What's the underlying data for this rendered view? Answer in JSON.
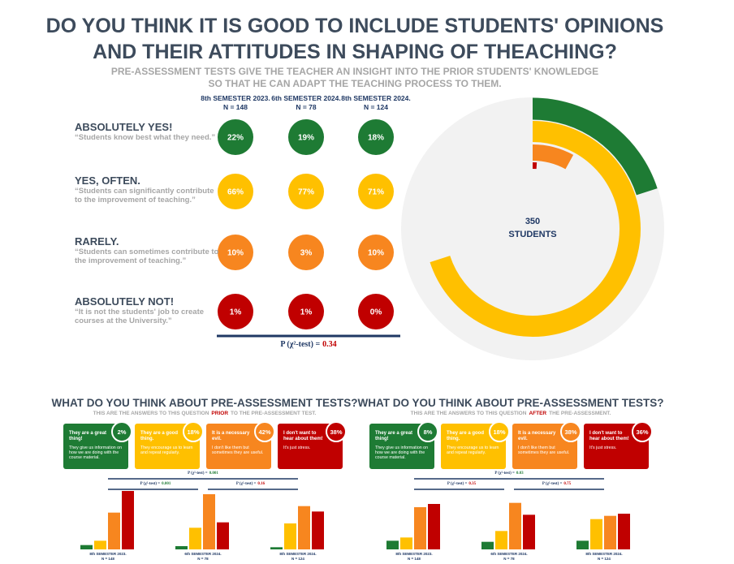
{
  "header": {
    "title_lines": [
      "DO YOU THINK IT IS GOOD TO INCLUDE STUDENTS' OPINIONS",
      "AND THEIR ATTITUDES IN SHAPING OF THEACHING?"
    ],
    "subtitle_lines": [
      "PRE-ASSESSMENT TESTS GIVE THE TEACHER AN INSIGHT INTO THE PRIOR STUDENTS' KNOWLEDGE",
      "SO THAT HE CAN ADAPT THE TEACHING PROCESS TO THEM."
    ]
  },
  "groups": [
    {
      "label": "8th SEMESTER 2023.",
      "n": "N = 148"
    },
    {
      "label": "6th SEMESTER 2024.",
      "n": "N = 78"
    },
    {
      "label": "8th SEMESTER 2024.",
      "n": "N = 124"
    }
  ],
  "answers": [
    {
      "label": "ABSOLUTELY YES!",
      "quote": "“Students know best what they need.”",
      "color": "#1e7b34",
      "values": [
        "22%",
        "19%",
        "18%"
      ]
    },
    {
      "label": "YES, OFTEN.",
      "quote": "“Students can significantly contribute to the improvement of teaching.”",
      "color": "#ffc000",
      "values": [
        "66%",
        "77%",
        "71%"
      ]
    },
    {
      "label": "RARELY.",
      "quote": "“Students can sometimes contribute to the improvement of teaching.”",
      "color": "#f7861f",
      "values": [
        "10%",
        "3%",
        "10%"
      ]
    },
    {
      "label": "ABSOLUTELY NOT!",
      "quote": "“It is not the students' job to create courses at the University.”",
      "color": "#c00000",
      "values": [
        "1%",
        "1%",
        "0%"
      ]
    }
  ],
  "main_test": {
    "label": "P (χ²-test) =",
    "value": "0.34"
  },
  "donut": {
    "total": "350",
    "unit": "STUDENTS",
    "values": [
      20,
      70,
      8,
      1
    ]
  },
  "bar_ylim": [
    0,
    60
  ],
  "panels": [
    {
      "title": "WHAT DO YOU THINK ABOUT PRE-ASSESSMENT TESTS?",
      "subtitle": {
        "before": "THIS ARE THE ANSWERS TO THIS QUESTION",
        "highlight": "PRIOR",
        "after": "TO THE PRE-ASSESSMENT TEST."
      },
      "cards": [
        {
          "heading": "They are a great thing!",
          "text": "They give us information on how we are doing with the course material.",
          "value": "2%"
        },
        {
          "heading": "They are a good thing.",
          "text": "They encourage us to learn and repeat regularly.",
          "value": "18%"
        },
        {
          "heading": "It is a necessary evil.",
          "text": "I don't like them but sometimes they are useful.",
          "value": "42%"
        },
        {
          "heading": "I don't want to hear about them!",
          "text": "It's just stress.",
          "value": "38%"
        }
      ],
      "overall_test": {
        "label": "P (χ²-test) =",
        "value": "0.001",
        "color": "#1e7b34"
      },
      "pair_tests": [
        {
          "label": "P (χ²-test) =",
          "value": "0.001",
          "color": "#1e7b34"
        },
        {
          "label": "P (χ²-test) =",
          "value": "0.16",
          "color": "#c00000"
        }
      ],
      "bars": [
        [
          4,
          8,
          34,
          54
        ],
        [
          3,
          20,
          51,
          25
        ],
        [
          2,
          24,
          40,
          35
        ]
      ]
    },
    {
      "title": "WHAT DO YOU THINK ABOUT PRE-ASSESSMENT TESTS?",
      "subtitle": {
        "before": "THIS ARE THE ANSWERS TO THIS QUESTION",
        "highlight": "AFTER",
        "after": "THE PRE-ASSESSMENT."
      },
      "cards": [
        {
          "heading": "They are a great thing!",
          "text": "They give us information on how we are doing with the course material.",
          "value": "8%"
        },
        {
          "heading": "They are a good thing.",
          "text": "They encourage us to learn and repeat regularly.",
          "value": "18%"
        },
        {
          "heading": "It is a necessary evil.",
          "text": "I don't like them but sometimes they are useful.",
          "value": "38%"
        },
        {
          "heading": "I don't want to hear about them!",
          "text": "It's just stress.",
          "value": "36%"
        }
      ],
      "overall_test": {
        "label": "P (χ²-test) =",
        "value": "0.03",
        "color": "#1e7b34"
      },
      "pair_tests": [
        {
          "label": "P (χ²-test) =",
          "value": "0.35",
          "color": "#c00000"
        },
        {
          "label": "P (χ²-test) =",
          "value": "0.75",
          "color": "#c00000"
        }
      ],
      "bars": [
        [
          8,
          11,
          39,
          42
        ],
        [
          7,
          17,
          43,
          32
        ],
        [
          8,
          28,
          31,
          33
        ]
      ]
    }
  ]
}
